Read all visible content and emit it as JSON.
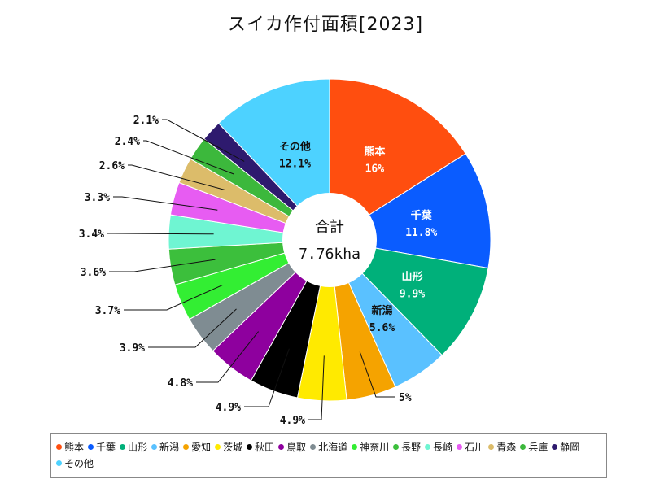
{
  "chart_data": {
    "type": "pie",
    "title": "スイカ作付面積[2023]",
    "center_label": "合計",
    "center_value": "7.76kha",
    "slices": [
      {
        "name": "熊本",
        "value": 16,
        "label": "16%",
        "color": "#ff4e0f"
      },
      {
        "name": "千葉",
        "value": 11.8,
        "label": "11.8%",
        "color": "#0a5cff"
      },
      {
        "name": "山形",
        "value": 9.9,
        "label": "9.9%",
        "color": "#00b07a"
      },
      {
        "name": "新潟",
        "value": 5.6,
        "label": "5.6%",
        "color": "#5ac1ff"
      },
      {
        "name": "愛知",
        "value": 5,
        "label": "5%",
        "color": "#f5a300"
      },
      {
        "name": "茨城",
        "value": 4.9,
        "label": "4.9%",
        "color": "#ffea00"
      },
      {
        "name": "秋田",
        "value": 4.9,
        "label": "4.9%",
        "color": "#000000"
      },
      {
        "name": "鳥取",
        "value": 4.8,
        "label": "4.8%",
        "color": "#8e009e"
      },
      {
        "name": "北海道",
        "value": 3.9,
        "label": "3.9%",
        "color": "#7f8c92"
      },
      {
        "name": "神奈川",
        "value": 3.7,
        "label": "3.7%",
        "color": "#33ee33"
      },
      {
        "name": "長野",
        "value": 3.6,
        "label": "3.6%",
        "color": "#3cbf3c"
      },
      {
        "name": "長崎",
        "value": 3.4,
        "label": "3.4%",
        "color": "#6ff5d2"
      },
      {
        "name": "石川",
        "value": 3.3,
        "label": "3.3%",
        "color": "#e75cf2"
      },
      {
        "name": "青森",
        "value": 2.6,
        "label": "2.6%",
        "color": "#dcbc6a"
      },
      {
        "name": "兵庫",
        "value": 2.4,
        "label": "2.4%",
        "color": "#3cb83c"
      },
      {
        "name": "静岡",
        "value": 2.1,
        "label": "2.1%",
        "color": "#2e1a6e"
      },
      {
        "name": "その他",
        "value": 12.1,
        "label": "12.1%",
        "color": "#4dd2ff"
      }
    ],
    "legend_placement": "bottom"
  }
}
